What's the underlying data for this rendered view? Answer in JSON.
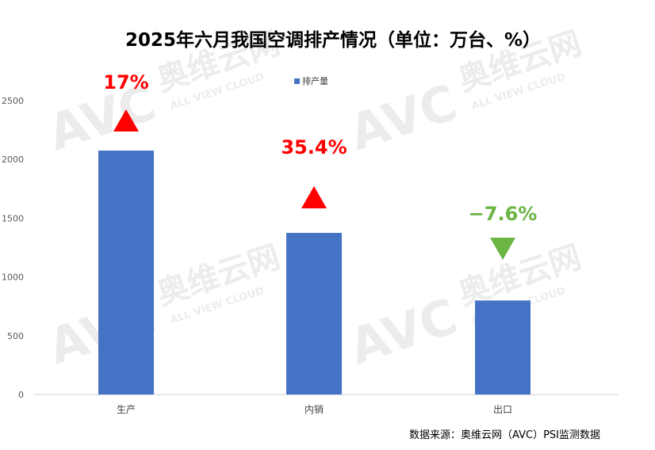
{
  "chart_data": {
    "type": "bar",
    "title": "2025年六月我国空调排产情况（单位：万台、%）",
    "categories": [
      "生产",
      "内销",
      "出口"
    ],
    "series": [
      {
        "name": "排产量",
        "values": [
          2075,
          1375,
          800
        ]
      }
    ],
    "changes": [
      {
        "category": "生产",
        "label": "17%",
        "direction": "up",
        "color": "#ff0000"
      },
      {
        "category": "内销",
        "label": "35.4%",
        "direction": "up",
        "color": "#ff0000"
      },
      {
        "category": "出口",
        "label": "−7.6%",
        "direction": "down",
        "color": "#6ab544"
      }
    ],
    "yticks": [
      0,
      500,
      1000,
      1500,
      2000,
      2500
    ],
    "ylim": [
      0,
      2500
    ],
    "xlabel": "",
    "ylabel": "",
    "legend_position": "top-center",
    "grid": false,
    "bar_color": "#4472c4",
    "source": "数据来源：奥维云网（AVC）PSI监测数据"
  },
  "watermark": {
    "brand": "AVC",
    "brand_cn": "奥维云网",
    "tagline": "ALL VIEW CLOUD"
  }
}
